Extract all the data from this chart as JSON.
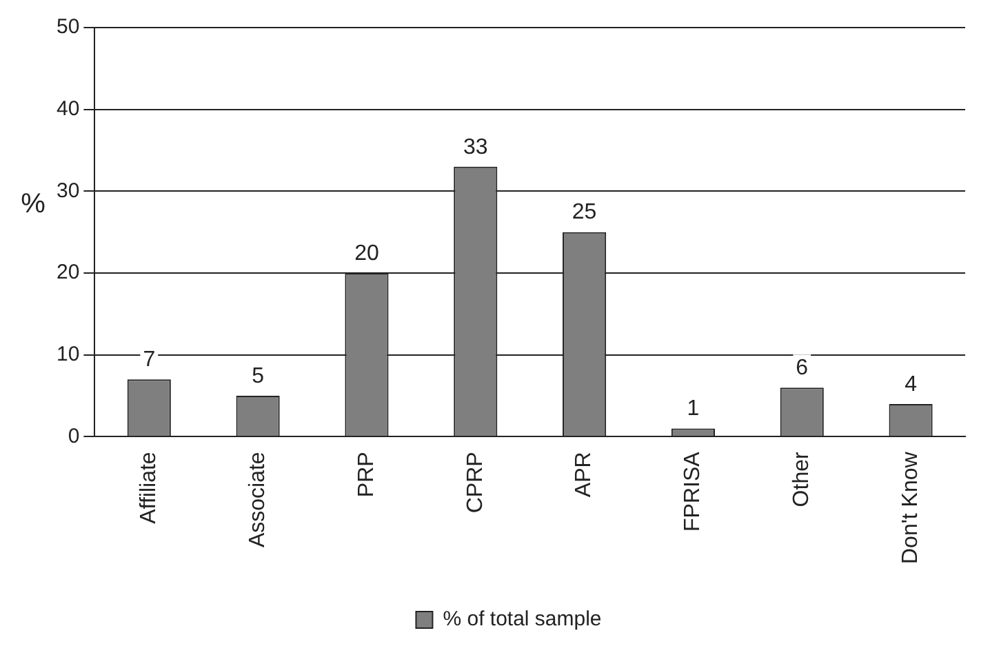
{
  "chart_data": {
    "type": "bar",
    "ylabel": "%",
    "categories": [
      "Affiliate",
      "Associate",
      "PRP",
      "CPRP",
      "APR",
      "FPRISA",
      "Other",
      "Don't Know"
    ],
    "series": [
      {
        "name": "% of total sample",
        "color": "#7f7f7f",
        "values": [
          7,
          5,
          20,
          33,
          25,
          1,
          6,
          4
        ]
      }
    ],
    "ylim": [
      0,
      50
    ],
    "yticks": [
      0,
      10,
      20,
      30,
      40,
      50
    ],
    "grid": "y",
    "legend": "bottom",
    "data_labels": true
  }
}
